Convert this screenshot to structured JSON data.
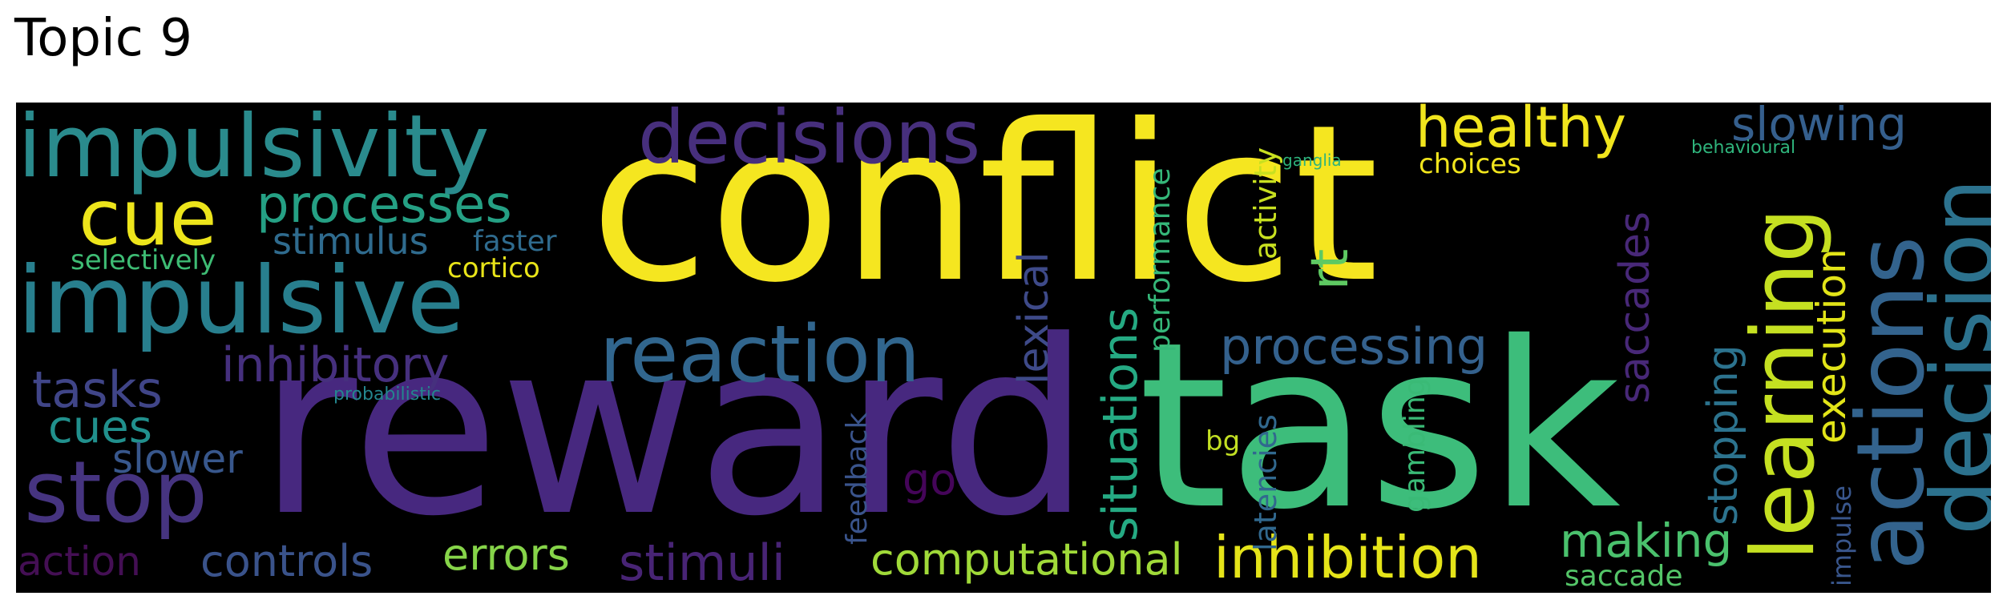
{
  "title": "Topic 9",
  "words": [
    {
      "text": "conflict",
      "color": "#f5e620",
      "vertical": false
    },
    {
      "text": "reward",
      "color": "#47287f",
      "vertical": false
    },
    {
      "text": "task",
      "color": "#3dbd7b",
      "vertical": false
    },
    {
      "text": "impulsivity",
      "color": "#2a8b8d",
      "vertical": false
    },
    {
      "text": "impulsive",
      "color": "#287f8e",
      "vertical": false
    },
    {
      "text": "decisions",
      "color": "#472f7d",
      "vertical": false
    },
    {
      "text": "reaction",
      "color": "#31668e",
      "vertical": false
    },
    {
      "text": "cue",
      "color": "#ede51b",
      "vertical": false
    },
    {
      "text": "processes",
      "color": "#25a084",
      "vertical": false
    },
    {
      "text": "stimulus",
      "color": "#2f6b8e",
      "vertical": false
    },
    {
      "text": "faster",
      "color": "#2f6b8e",
      "vertical": false
    },
    {
      "text": "selectively",
      "color": "#3ebc74",
      "vertical": false
    },
    {
      "text": "cortico",
      "color": "#e8e419",
      "vertical": false
    },
    {
      "text": "inhibitory",
      "color": "#46307e",
      "vertical": false
    },
    {
      "text": "tasks",
      "color": "#404588",
      "vertical": false
    },
    {
      "text": "probabilistic",
      "color": "#24868e",
      "vertical": false
    },
    {
      "text": "cues",
      "color": "#21908d",
      "vertical": false
    },
    {
      "text": "slower",
      "color": "#38578c",
      "vertical": false
    },
    {
      "text": "stop",
      "color": "#463480",
      "vertical": false
    },
    {
      "text": "action",
      "color": "#440f54",
      "vertical": false
    },
    {
      "text": "controls",
      "color": "#3a538b",
      "vertical": false
    },
    {
      "text": "errors",
      "color": "#86d449",
      "vertical": false
    },
    {
      "text": "stimuli",
      "color": "#482475",
      "vertical": false
    },
    {
      "text": "feedback",
      "color": "#3a548c",
      "vertical": true
    },
    {
      "text": "computational",
      "color": "#a0da39",
      "vertical": false
    },
    {
      "text": "go",
      "color": "#450559",
      "vertical": false
    },
    {
      "text": "lexical",
      "color": "#3e4a89",
      "vertical": true
    },
    {
      "text": "situations",
      "color": "#25aa83",
      "vertical": true
    },
    {
      "text": "performance",
      "color": "#35b779",
      "vertical": true
    },
    {
      "text": "activity",
      "color": "#c8e020",
      "vertical": true
    },
    {
      "text": "ganglia",
      "color": "#2eb37c",
      "vertical": false
    },
    {
      "text": "healthy",
      "color": "#f1e51d",
      "vertical": false
    },
    {
      "text": "choices",
      "color": "#f1e51d",
      "vertical": false
    },
    {
      "text": "rt",
      "color": "#5ec962",
      "vertical": true
    },
    {
      "text": "processing",
      "color": "#34618d",
      "vertical": false
    },
    {
      "text": "inhibition",
      "color": "#e5e419",
      "vertical": false
    },
    {
      "text": "bg",
      "color": "#c2df23",
      "vertical": false
    },
    {
      "text": "latencies",
      "color": "#31688e",
      "vertical": true
    },
    {
      "text": "gambling",
      "color": "#3aba76",
      "vertical": true
    },
    {
      "text": "saccades",
      "color": "#482878",
      "vertical": true
    },
    {
      "text": "stopping",
      "color": "#2c738e",
      "vertical": true
    },
    {
      "text": "making",
      "color": "#4ac16d",
      "vertical": false
    },
    {
      "text": "saccade",
      "color": "#54c568",
      "vertical": false
    },
    {
      "text": "slowing",
      "color": "#355f8d",
      "vertical": false
    },
    {
      "text": "behavioural",
      "color": "#2fb47c",
      "vertical": false
    },
    {
      "text": "learning",
      "color": "#c5e021",
      "vertical": true
    },
    {
      "text": "execution",
      "color": "#e2e418",
      "vertical": true
    },
    {
      "text": "impulse",
      "color": "#39568c",
      "vertical": true
    },
    {
      "text": "actions",
      "color": "#33638d",
      "vertical": true
    },
    {
      "text": "decision",
      "color": "#2c728e",
      "vertical": true
    }
  ]
}
